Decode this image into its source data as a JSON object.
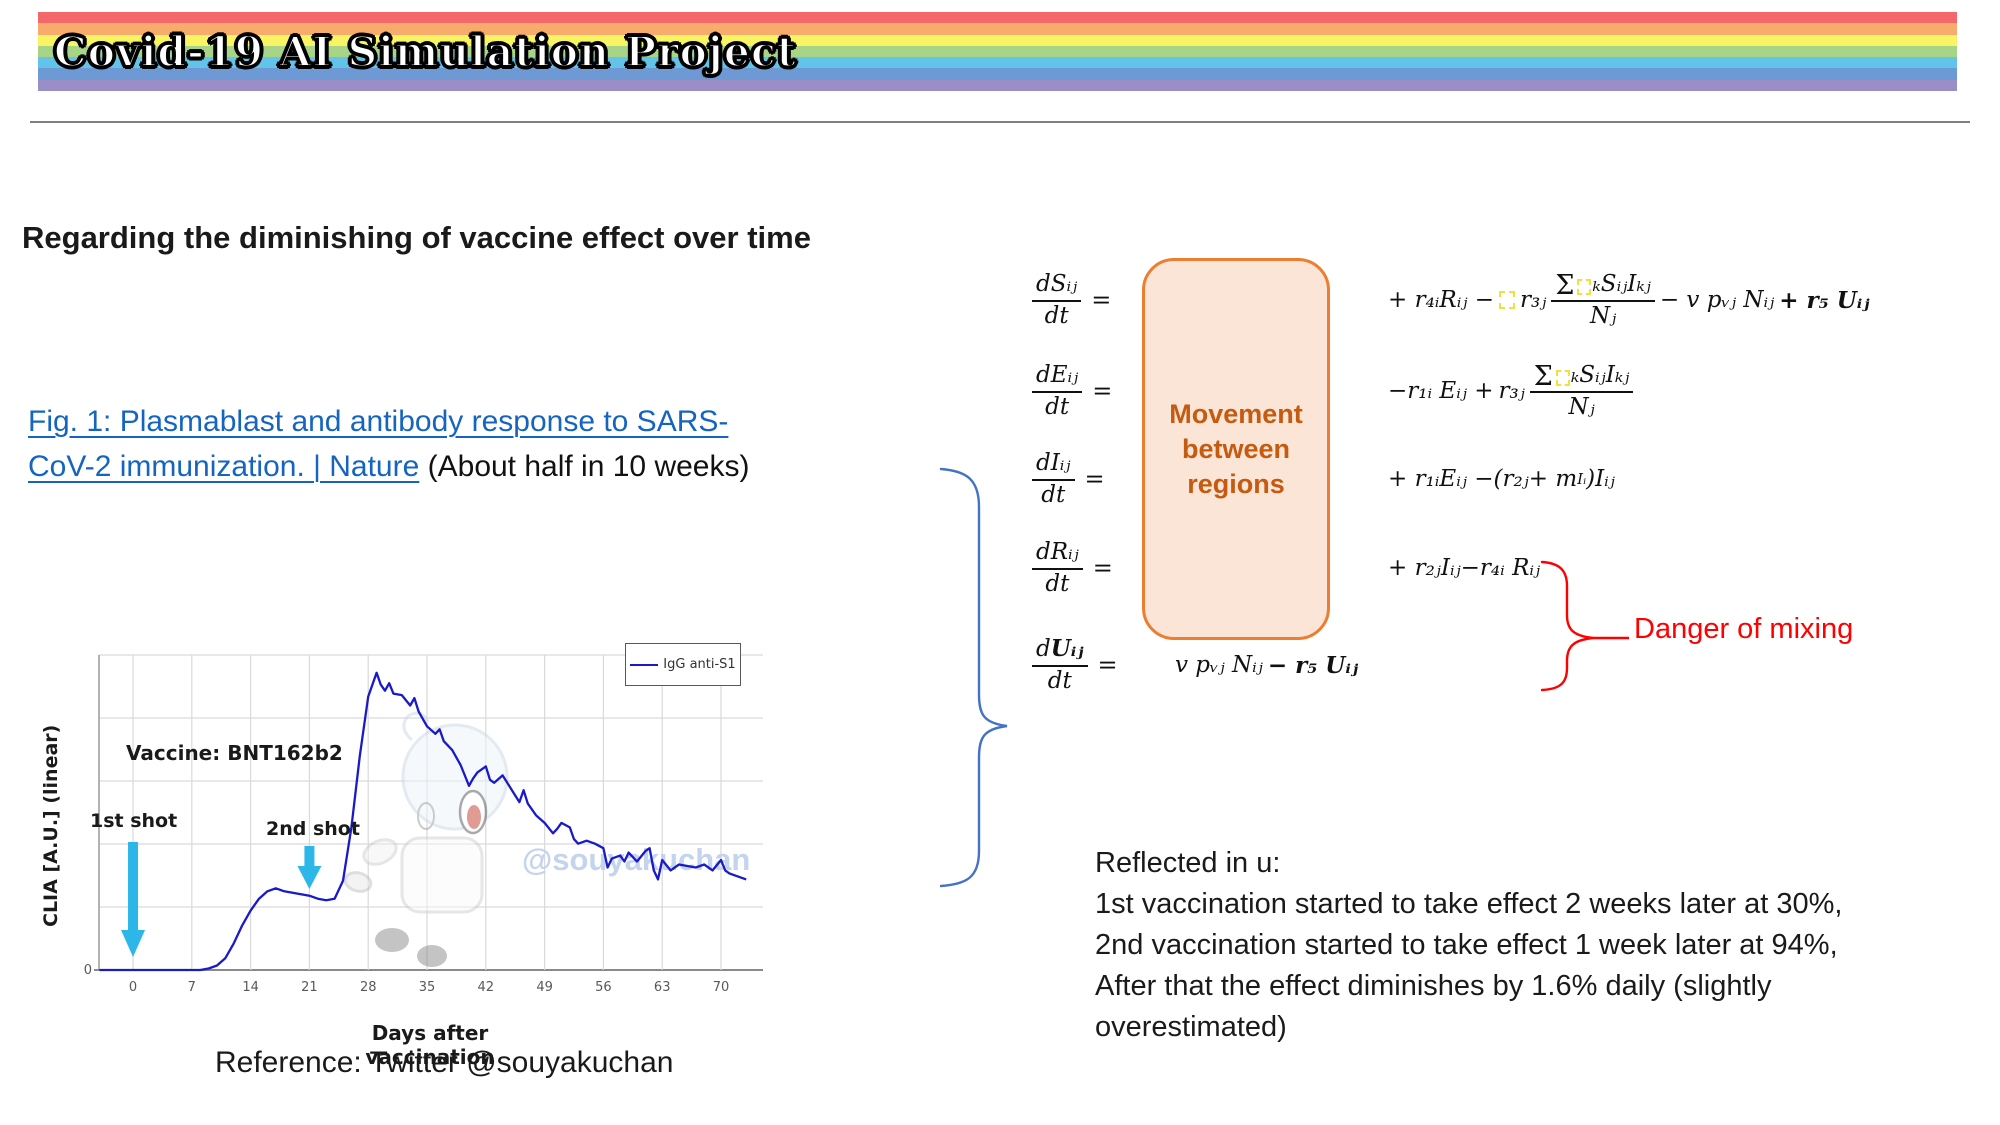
{
  "banner": {
    "title": "Covid-19 AI Simulation Project",
    "stripes": [
      "#F4686C",
      "#F8AC6B",
      "#F8F463",
      "#A8D488",
      "#62C4E8",
      "#6D9AD4",
      "#9A8EC6"
    ]
  },
  "heading": "Regarding the diminishing of vaccine effect over time",
  "figure_link": {
    "line1": "Fig. 1: Plasmablast and antibody response to SARS-",
    "line2": "CoV-2 immunization. | Nature",
    "suffix": " (About half in 10 weeks)"
  },
  "movement_box": {
    "label": "Movement between regions"
  },
  "danger_label": "Danger of mixing",
  "reflected": {
    "title": "Reflected in u:",
    "lines": [
      "1st vaccination started to take effect 2 weeks later at 30%,",
      "2nd vaccination started to take effect 1 week later at 94%,",
      "After that the effect diminishes by 1.6% daily (slightly",
      "overestimated)"
    ]
  },
  "reference": "Reference: Twitter @souyakuchan",
  "equations": {
    "rows": [
      {
        "num": "dSᵢⱼ",
        "den": "dt",
        "eq": "="
      },
      {
        "num": "dEᵢⱼ",
        "den": "dt",
        "eq": "="
      },
      {
        "num": "dIᵢⱼ",
        "den": "dt",
        "eq": "="
      },
      {
        "num": "dRᵢⱼ",
        "den": "dt",
        "eq": "="
      },
      {
        "num_d": "d",
        "num_u": "Uᵢⱼ",
        "den": "dt",
        "eq": "="
      }
    ],
    "r1": {
      "a": "+ r₄ᵢRᵢⱼ −",
      "b": "r₃ⱼ",
      "sigma": "Σ",
      "num_rest": "ₖSᵢⱼIₖⱼ",
      "den": "Nⱼ",
      "c": "− v pᵥⱼ Nᵢⱼ",
      "d": "+ r₅ Uᵢⱼ"
    },
    "r2": {
      "a": "−r₁ᵢ Eᵢⱼ +",
      "b": "r₃ⱼ",
      "sigma": "Σ",
      "num_rest": "ₖSᵢⱼIₖⱼ",
      "den": "Nⱼ"
    },
    "r3": {
      "a": "+ r₁ᵢEᵢⱼ −(r₂ⱼ+ m",
      "msub": "Iᵢ",
      "b": ")Iᵢⱼ"
    },
    "r4": {
      "a": "+ r₂ⱼIᵢⱼ−r₄ᵢ Rᵢⱼ"
    },
    "r5": {
      "a": "v pᵥⱼ Nᵢⱼ",
      "b": "− r₅ Uᵢⱼ"
    }
  },
  "chart_data": {
    "type": "line",
    "title": "",
    "xlabel": "Days after vaccination",
    "ylabel": "CLIA [A.U.] (linear)",
    "x_ticks": [
      0,
      7,
      14,
      21,
      28,
      35,
      42,
      49,
      56,
      63,
      70
    ],
    "y_origin_label": "0",
    "xlim": [
      -4.05,
      75
    ],
    "ylim": [
      0,
      106
    ],
    "grid": true,
    "legend": {
      "position": "top-right",
      "entries": [
        {
          "label": "IgG anti-S1",
          "color": "#1A1AC8"
        }
      ]
    },
    "annotations": {
      "vaccine": "Vaccine: BNT162b2",
      "shot1": {
        "label": "1st shot",
        "day": 0
      },
      "shot2": {
        "label": "2nd shot",
        "day": 21
      },
      "watermark": "@souyakuchan"
    },
    "series": [
      {
        "name": "IgG anti-S1",
        "color": "#1A1AC8",
        "points": [
          [
            -4,
            0
          ],
          [
            0,
            0
          ],
          [
            8,
            0
          ],
          [
            9,
            0.5
          ],
          [
            10,
            1.5
          ],
          [
            11,
            4
          ],
          [
            12,
            9
          ],
          [
            13,
            15
          ],
          [
            14,
            20
          ],
          [
            15,
            24
          ],
          [
            16,
            26.5
          ],
          [
            17,
            27.5
          ],
          [
            18,
            26.5
          ],
          [
            19,
            26
          ],
          [
            20,
            25.5
          ],
          [
            21,
            25
          ],
          [
            22,
            24
          ],
          [
            23,
            23.5
          ],
          [
            24,
            24
          ],
          [
            25,
            30
          ],
          [
            26,
            48
          ],
          [
            27,
            72
          ],
          [
            28,
            92
          ],
          [
            29,
            100
          ],
          [
            29.5,
            96
          ],
          [
            30,
            94
          ],
          [
            30.5,
            96.5
          ],
          [
            31,
            93
          ],
          [
            32,
            92.5
          ],
          [
            33,
            89
          ],
          [
            33.5,
            91.5
          ],
          [
            34,
            87
          ],
          [
            35,
            82
          ],
          [
            36,
            79.5
          ],
          [
            36.5,
            81
          ],
          [
            37,
            77
          ],
          [
            38,
            74
          ],
          [
            39,
            69
          ],
          [
            40,
            62
          ],
          [
            40.5,
            64.5
          ],
          [
            41,
            66.5
          ],
          [
            42,
            68.5
          ],
          [
            42.5,
            64
          ],
          [
            43,
            63
          ],
          [
            44,
            65.5
          ],
          [
            45,
            61
          ],
          [
            46,
            56.5
          ],
          [
            46.5,
            60.5
          ],
          [
            47,
            56
          ],
          [
            48,
            52
          ],
          [
            49,
            49.5
          ],
          [
            50,
            46
          ],
          [
            50.5,
            47.5
          ],
          [
            51,
            49.5
          ],
          [
            52,
            48
          ],
          [
            52.5,
            44
          ],
          [
            53,
            42.5
          ],
          [
            54,
            43.5
          ],
          [
            55,
            42.5
          ],
          [
            56,
            41
          ],
          [
            56.5,
            34.5
          ],
          [
            57,
            37.5
          ],
          [
            58,
            38.5
          ],
          [
            58.5,
            36.5
          ],
          [
            59,
            39.5
          ],
          [
            60,
            36.5
          ],
          [
            61,
            40
          ],
          [
            61.5,
            41
          ],
          [
            62,
            33.5
          ],
          [
            62.5,
            30.5
          ],
          [
            63,
            37
          ],
          [
            64,
            33.5
          ],
          [
            65,
            35.5
          ],
          [
            66,
            35
          ],
          [
            67,
            34.5
          ],
          [
            68,
            35.5
          ],
          [
            69,
            33.5
          ],
          [
            70,
            37
          ],
          [
            70.5,
            33.5
          ],
          [
            71,
            32.5
          ],
          [
            72,
            31.5
          ],
          [
            73,
            30.5
          ]
        ]
      }
    ]
  },
  "colors": {
    "link": "#1565C0",
    "danger": "#FF0000",
    "brace_blue": "#4472C4",
    "movement_border": "#ED7D31",
    "movement_fill": "#FBE5D6",
    "movement_text": "#C55A11",
    "arrow_cyan": "#2CB7E8",
    "watermark": "#C3D4EC",
    "grid": "#D9D9D9",
    "tick": "#595959"
  }
}
